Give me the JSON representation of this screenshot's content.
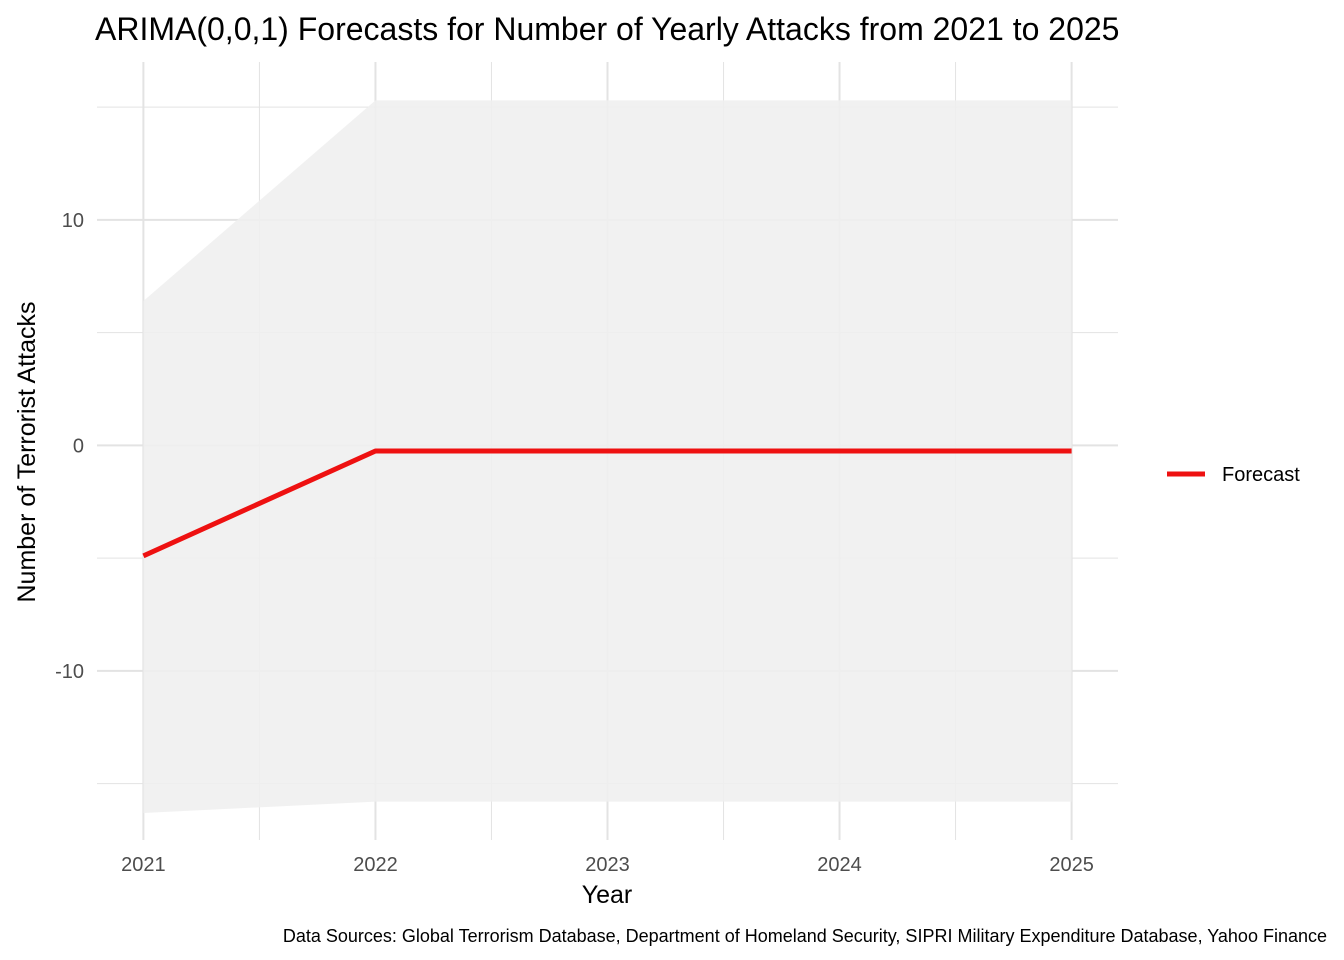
{
  "chart_data": {
    "type": "line",
    "title": "ARIMA(0,0,1) Forecasts for Number of Yearly Attacks from 2021 to 2025",
    "xlabel": "Year",
    "ylabel": "Number of Terrorist Attacks",
    "caption": "Data Sources: Global Terrorism Database, Department of Homeland Security, SIPRI Military Expenditure Database, Yahoo Finance",
    "x": [
      2021,
      2022,
      2023,
      2024,
      2025
    ],
    "x_ticks": [
      "2021",
      "2022",
      "2023",
      "2024",
      "2025"
    ],
    "y_ticks": [
      {
        "value": 10,
        "label": "10"
      },
      {
        "value": 0,
        "label": "0"
      },
      {
        "value": -10,
        "label": "-10"
      }
    ],
    "xlim": [
      2020.8,
      2025.2
    ],
    "ylim": [
      -17.5,
      17.0
    ],
    "grid": true,
    "legend_position": "right",
    "series": [
      {
        "name": "Forecast",
        "color": "#ee1111",
        "values": [
          -4.9,
          -0.25,
          -0.25,
          -0.25,
          -0.25
        ],
        "interval_lower": [
          -16.3,
          -15.8,
          -15.8,
          -15.8,
          -15.8
        ],
        "interval_upper": [
          6.4,
          15.3,
          15.3,
          15.3,
          15.3
        ]
      }
    ],
    "band_color": "#efefef",
    "grid_color": "#e3e3e3"
  }
}
